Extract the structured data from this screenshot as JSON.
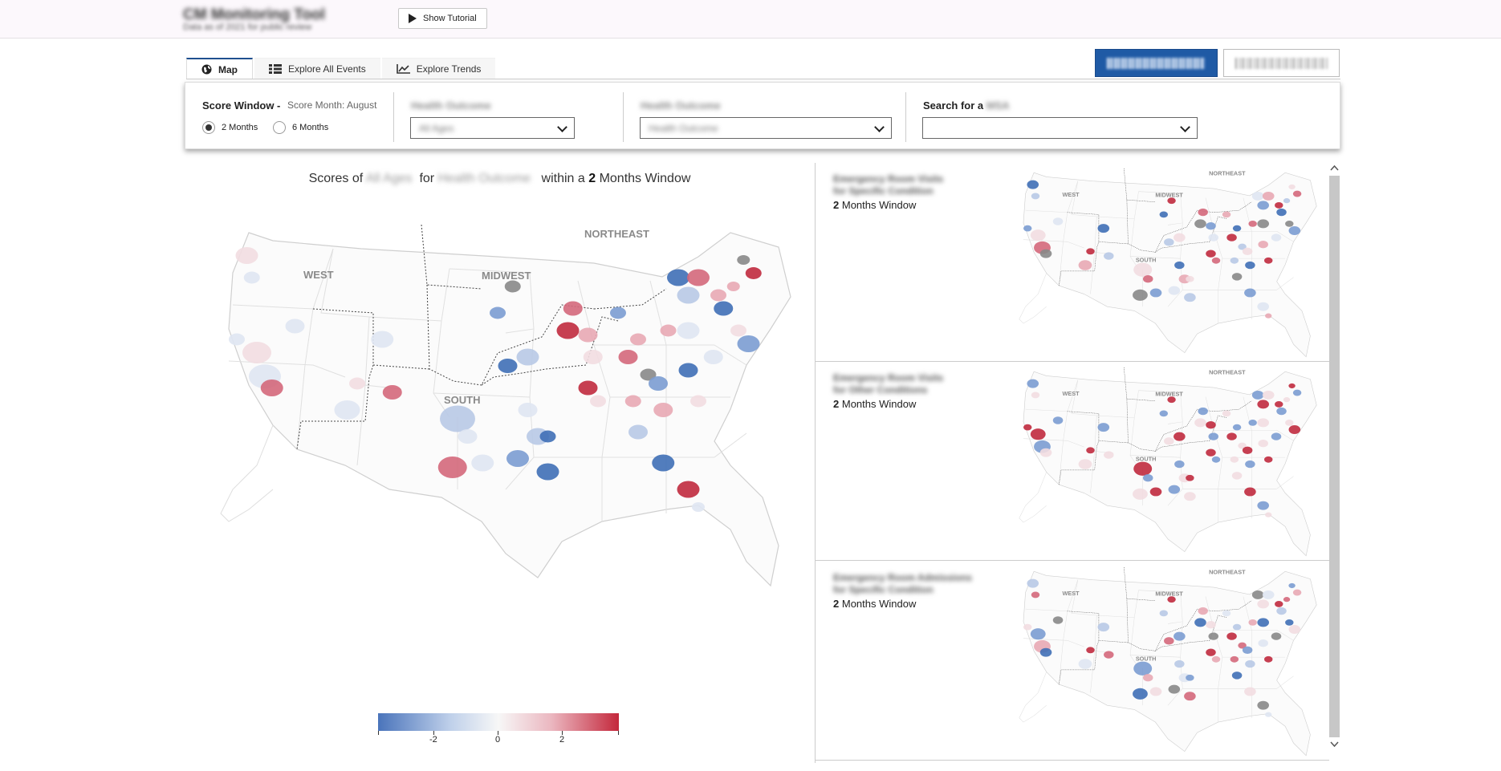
{
  "app": {
    "title": "CM Monitoring Tool",
    "subtitle": "Data as of 2021 for public review"
  },
  "header": {
    "tutorial_label": "Show Tutorial"
  },
  "tabs": [
    {
      "label": "Map",
      "icon": "globe-icon",
      "active": true
    },
    {
      "label": "Explore All Events",
      "icon": "table-icon",
      "active": false
    },
    {
      "label": "Explore Trends",
      "icon": "trend-chart-icon",
      "active": false
    }
  ],
  "actions": {
    "primary_label": "Update Selection",
    "secondary_label": "Reset Selection"
  },
  "filters": {
    "score_window_label": "Score Window -",
    "score_month": "Score Month: August",
    "options": [
      {
        "label": "2 Months",
        "selected": true
      },
      {
        "label": "6 Months",
        "selected": false
      }
    ],
    "filter1_label": "Health Outcome",
    "filter1_value": "All Ages",
    "filter2_label": "Health Outcome",
    "filter2_value": "Health Outcome",
    "search_label": "Search for a",
    "search_label_blurred": "MSA",
    "search_value": ""
  },
  "main_map": {
    "title_prefix": "Scores of",
    "title_blur1": "All Ages",
    "title_mid": "for",
    "title_blur2": "Health Outcome",
    "title_within": "within a",
    "window_value": "2",
    "window_suffix": "Months Window",
    "regions": [
      "WEST",
      "MIDWEST",
      "NORTHEAST",
      "SOUTH"
    ]
  },
  "legend": {
    "ticks": [
      "-2",
      "0",
      "2"
    ],
    "colors": {
      "low": "#4a74bb",
      "mid": "#f7f7f7",
      "high": "#c4283c"
    }
  },
  "small_maps": [
    {
      "name_line1": "Emergency Room Visits",
      "name_line2": "for Specific Condition",
      "window_value": "2",
      "window_suffix": "Months Window"
    },
    {
      "name_line1": "Emergency Room Visits",
      "name_line2": "for Other Conditions",
      "window_value": "2",
      "window_suffix": "Months Window"
    },
    {
      "name_line1": "Emergency Room Admissions",
      "name_line2": "for Specific Condition",
      "window_value": "2",
      "window_suffix": "Months Window"
    }
  ]
}
